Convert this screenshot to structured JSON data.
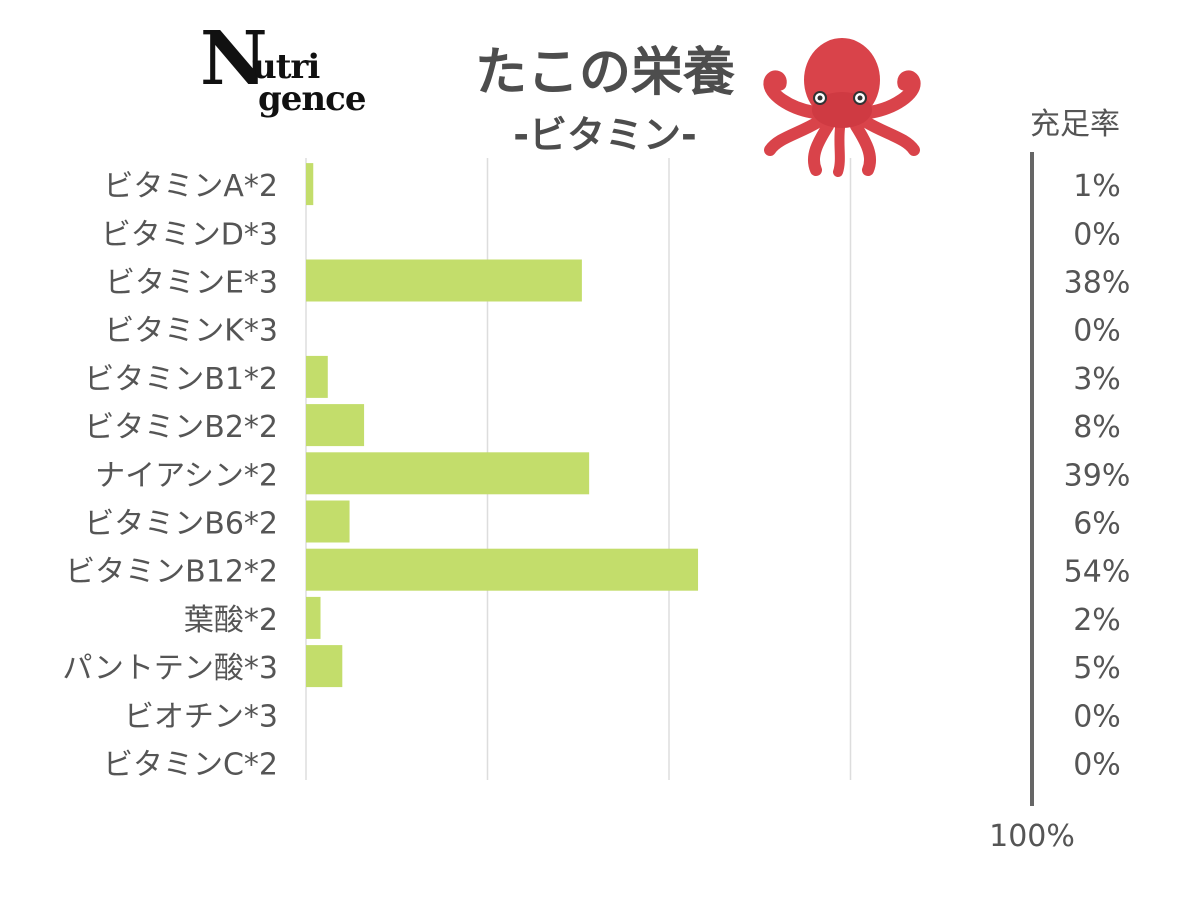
{
  "logo": {
    "line1": "N",
    "line2": "utri",
    "line3": "gence"
  },
  "title": "たこの栄養",
  "subtitle": "-ビタミン-",
  "icons": {
    "octopus": "octopus-icon"
  },
  "colors": {
    "bar": "#c3dd6b",
    "grid": "#dddddd",
    "text": "#555555",
    "axis": "#666666"
  },
  "chart_data": {
    "type": "bar",
    "orientation": "horizontal",
    "categories": [
      "ビタミンA*2",
      "ビタミンD*3",
      "ビタミンE*3",
      "ビタミンK*3",
      "ビタミンB1*2",
      "ビタミンB2*2",
      "ナイアシン*2",
      "ビタミンB6*2",
      "ビタミンB12*2",
      "葉酸*2",
      "パントテン酸*3",
      "ビオチン*3",
      "ビタミンC*2"
    ],
    "values": [
      1,
      0,
      38,
      0,
      3,
      8,
      39,
      6,
      54,
      2,
      5,
      0,
      0
    ],
    "value_labels": [
      "1%",
      "0%",
      "38%",
      "0%",
      "3%",
      "8%",
      "39%",
      "6%",
      "54%",
      "2%",
      "5%",
      "0%",
      "0%"
    ],
    "xlim": [
      0,
      100
    ],
    "grid": true,
    "column_header": "充足率",
    "reference_label": "100%"
  }
}
